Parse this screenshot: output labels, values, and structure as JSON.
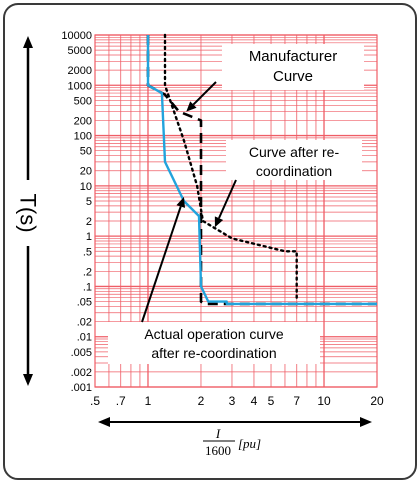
{
  "chart_data": {
    "type": "line",
    "title": "",
    "ylabel": "T(s)",
    "xlabel_num": "I",
    "xlabel_den": "1600",
    "xlabel_unit": "[pu]",
    "x_scale": "log",
    "y_scale": "log",
    "xlim": [
      0.5,
      20
    ],
    "ylim": [
      0.001,
      10000
    ],
    "grid": true,
    "grid_color": "#ef5d66",
    "x_ticks": [
      {
        "v": 0.5,
        "label": ".5"
      },
      {
        "v": 0.7,
        "label": ".7"
      },
      {
        "v": 1,
        "label": "1"
      },
      {
        "v": 2,
        "label": "2"
      },
      {
        "v": 3,
        "label": "3"
      },
      {
        "v": 4,
        "label": "4"
      },
      {
        "v": 5,
        "label": "5"
      },
      {
        "v": 7,
        "label": "7"
      },
      {
        "v": 10,
        "label": "10"
      },
      {
        "v": 20,
        "label": "20"
      }
    ],
    "y_ticks": [
      {
        "v": 10000,
        "label": "10000"
      },
      {
        "v": 5000,
        "label": "5000"
      },
      {
        "v": 2000,
        "label": "2000"
      },
      {
        "v": 1000,
        "label": "1000"
      },
      {
        "v": 500,
        "label": "500"
      },
      {
        "v": 200,
        "label": "200"
      },
      {
        "v": 100,
        "label": "100"
      },
      {
        "v": 50,
        "label": "50"
      },
      {
        "v": 20,
        "label": "20"
      },
      {
        "v": 10,
        "label": "10"
      },
      {
        "v": 5,
        "label": "5"
      },
      {
        "v": 2,
        "label": "2"
      },
      {
        "v": 1,
        "label": "1"
      },
      {
        "v": 0.5,
        "label": ".5"
      },
      {
        "v": 0.2,
        "label": ".2"
      },
      {
        "v": 0.1,
        "label": ".1"
      },
      {
        "v": 0.05,
        "label": ".05"
      },
      {
        "v": 0.02,
        "label": ".02"
      },
      {
        "v": 0.01,
        "label": ".01"
      },
      {
        "v": 0.005,
        "label": ".005"
      },
      {
        "v": 0.002,
        "label": ".002"
      },
      {
        "v": 0.001,
        "label": ".001"
      }
    ],
    "series": [
      {
        "key": "manufacturer",
        "color": "#000000",
        "style": "dashed",
        "points": [
          [
            1.0,
            10000
          ],
          [
            1.0,
            1000
          ],
          [
            1.25,
            650
          ],
          [
            1.5,
            300
          ],
          [
            2.0,
            200
          ],
          [
            2.0,
            0.05
          ],
          [
            2.1,
            0.045
          ],
          [
            20,
            0.045
          ]
        ]
      },
      {
        "key": "before",
        "color": "#000000",
        "style": "dotted",
        "points": [
          [
            1.25,
            10000
          ],
          [
            1.25,
            1000
          ],
          [
            1.6,
            80
          ],
          [
            1.9,
            10
          ],
          [
            2.05,
            2
          ],
          [
            3.0,
            0.9
          ],
          [
            6.0,
            0.5
          ],
          [
            7.0,
            0.5
          ],
          [
            7.0,
            0.05
          ]
        ]
      },
      {
        "key": "actual",
        "color": "#22a3dc",
        "style": "solid",
        "points": [
          [
            1.0,
            10000
          ],
          [
            1.0,
            1000
          ],
          [
            1.2,
            700
          ],
          [
            1.25,
            30
          ],
          [
            1.6,
            5
          ],
          [
            1.95,
            2.5
          ],
          [
            2.0,
            0.1
          ],
          [
            2.2,
            0.05
          ],
          [
            2.8,
            0.05
          ],
          [
            2.8,
            0.045
          ],
          [
            20,
            0.045
          ]
        ]
      }
    ],
    "annotations": [
      {
        "key": "manufacturer",
        "lines": [
          "Manufacturer",
          "Curve"
        ],
        "arrow_to": [
          1.65,
          300
        ]
      },
      {
        "key": "reco",
        "lines": [
          "Curve after re-",
          "coordination"
        ],
        "arrow_to": [
          2.4,
          1.5
        ]
      },
      {
        "key": "actual",
        "lines": [
          "Actual operation curve",
          "after re-coordination"
        ],
        "arrow_to": [
          1.6,
          6
        ]
      }
    ]
  }
}
